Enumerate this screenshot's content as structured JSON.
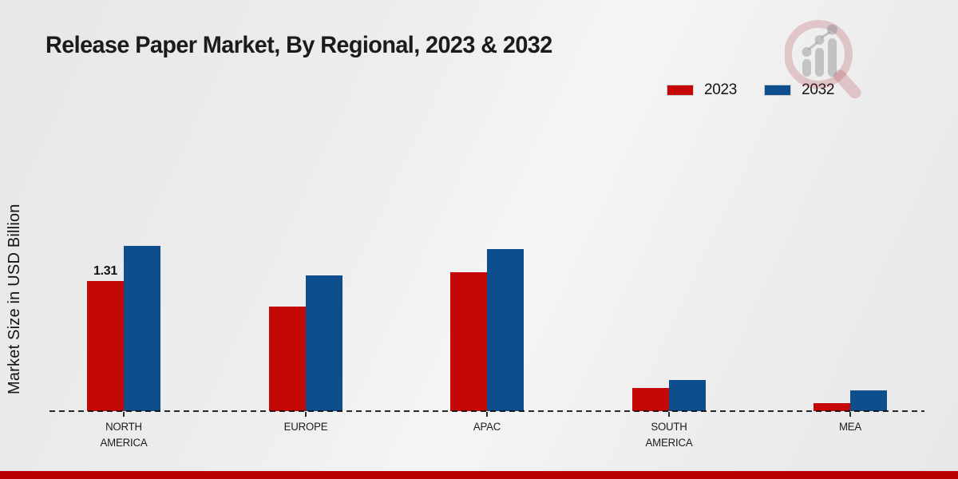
{
  "page": {
    "bottom_strip_color": "#b90000",
    "background_tint": "#ececec"
  },
  "logo": {
    "name": "magnifier-growth-chart-watermark",
    "ring_color": "rgba(170,52,62,0.22)",
    "bars_color": "rgba(130,133,138,0.42)"
  },
  "chart_data": {
    "type": "bar",
    "title": "Release Paper Market, By Regional, 2023 & 2032",
    "xlabel": "",
    "ylabel": "Market Size in USD Billion",
    "categories": [
      "NORTH AMERICA",
      "EUROPE",
      "APAC",
      "SOUTH AMERICA",
      "MEA"
    ],
    "series": [
      {
        "name": "2023",
        "color": "#c40808",
        "values": [
          1.31,
          1.05,
          1.4,
          0.23,
          0.08
        ]
      },
      {
        "name": "2032",
        "color": "#0f4e8c",
        "values": [
          1.66,
          1.37,
          1.63,
          0.31,
          0.21
        ]
      }
    ],
    "annotations": [
      {
        "text": "1.31",
        "category_index": 0,
        "series_index": 0
      }
    ],
    "ylim": [
      0,
      2
    ],
    "grid": false,
    "legend_position": "top-right",
    "baseline_style": "dashed"
  }
}
